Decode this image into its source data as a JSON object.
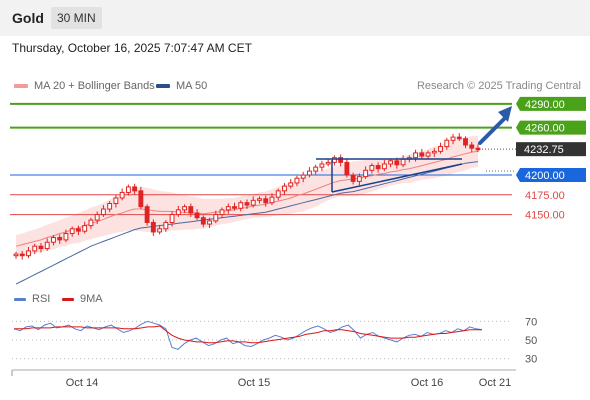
{
  "header": {
    "symbol": "Gold",
    "timeframe": "30 MIN",
    "datetime": "Thursday, October 16, 2025 7:07:47 AM CET"
  },
  "legend": {
    "ma20": "MA 20 + Bollinger Bands",
    "ma50": "MA 50",
    "credit": "Research © 2025 Trading Central",
    "rsi": "RSI",
    "ma9": "9MA"
  },
  "colors": {
    "candle": "#e02424",
    "resistance": "#4aa11a",
    "support_main": "#1a66dd",
    "support": "#e04848",
    "ma20": "#f08080",
    "ma50": "#4a6aa0",
    "bollinger_fill": "#fde2e2",
    "rsi": "#5a7fd0",
    "ma9": "#d81818",
    "current_price": "#333333",
    "arrow": "#2a5aa8",
    "pattern": "#1c3f8a"
  },
  "chart_data": [
    {
      "type": "candlestick",
      "x_axis_labels": [
        "Oct 14",
        "Oct 15",
        "Oct 16",
        "Oct 21"
      ],
      "ylim": [
        4090,
        4300
      ],
      "current_price": 4232.75,
      "current_price_label": "4232.75",
      "levels": [
        {
          "value": 4290.0,
          "label": "4290.00",
          "kind": "resistance",
          "style": "box"
        },
        {
          "value": 4260.0,
          "label": "4260.00",
          "kind": "resistance",
          "style": "box"
        },
        {
          "value": 4200.0,
          "label": "4200.00",
          "kind": "pivot",
          "style": "box"
        },
        {
          "value": 4175.0,
          "label": "4175.00",
          "kind": "support",
          "style": "text"
        },
        {
          "value": 4150.0,
          "label": "4150.00",
          "kind": "support",
          "style": "text"
        }
      ],
      "price_path": [
        4100,
        4098,
        4104,
        4110,
        4107,
        4115,
        4121,
        4118,
        4126,
        4132,
        4129,
        4136,
        4143,
        4150,
        4157,
        4164,
        4171,
        4178,
        4185,
        4180,
        4160,
        4140,
        4128,
        4132,
        4140,
        4150,
        4156,
        4160,
        4152,
        4146,
        4138,
        4142,
        4150,
        4156,
        4160,
        4158,
        4165,
        4162,
        4168,
        4170,
        4165,
        4172,
        4180,
        4186,
        4190,
        4196,
        4200,
        4205,
        4210,
        4214,
        4216,
        4222,
        4216,
        4200,
        4192,
        4198,
        4206,
        4212,
        4208,
        4214,
        4218,
        4213,
        4220,
        4222,
        4228,
        4224,
        4228,
        4230,
        4236,
        4244,
        4248,
        4246,
        4238,
        4234,
        4232
      ],
      "ma20": [
        4110,
        4112,
        4114,
        4116,
        4118,
        4121,
        4123,
        4126,
        4128,
        4131,
        4133,
        4136,
        4139,
        4141,
        4144,
        4147,
        4150,
        4152,
        4155,
        4157,
        4157,
        4156,
        4155,
        4154,
        4154,
        4154,
        4153,
        4153,
        4152,
        4152,
        4151,
        4152,
        4153,
        4154,
        4155,
        4156,
        4158,
        4159,
        4161,
        4162,
        4163,
        4165,
        4167,
        4169,
        4171,
        4174,
        4176,
        4179,
        4182,
        4185,
        4188,
        4191,
        4193,
        4194,
        4195,
        4196,
        4198,
        4199,
        4201,
        4202,
        4204,
        4205,
        4207,
        4208,
        4210,
        4212,
        4214,
        4216,
        4218,
        4220,
        4223,
        4225,
        4227,
        4229,
        4230
      ],
      "bb_width": [
        14,
        14,
        15,
        15,
        16,
        16,
        17,
        17,
        18,
        18,
        19,
        19,
        20,
        20,
        21,
        22,
        23,
        24,
        25,
        27,
        28,
        28,
        27,
        26,
        25,
        24,
        23,
        22,
        21,
        20,
        19,
        18,
        17,
        16,
        16,
        15,
        15,
        15,
        15,
        16,
        16,
        17,
        18,
        19,
        20,
        21,
        22,
        22,
        22,
        21,
        20,
        20,
        20,
        21,
        22,
        22,
        21,
        20,
        19,
        18,
        17,
        17,
        17,
        18,
        18,
        18,
        19,
        20,
        20,
        21,
        21,
        21,
        21,
        20,
        20
      ],
      "ma50": [
        4062,
        4066,
        4070,
        4074,
        4078,
        4082,
        4086,
        4090,
        4094,
        4098,
        4102,
        4106,
        4110,
        4113,
        4116,
        4119,
        4122,
        4125,
        4128,
        4131,
        4133,
        4134,
        4135,
        4136,
        4137,
        4138,
        4139,
        4140,
        4141,
        4142,
        4143,
        4144,
        4145,
        4146,
        4147,
        4148,
        4149,
        4150,
        4151,
        4152,
        4153,
        4155,
        4157,
        4159,
        4161,
        4163,
        4165,
        4167,
        4169,
        4171,
        4173,
        4175,
        4177,
        4178,
        4179,
        4181,
        4183,
        4185,
        4187,
        4189,
        4191,
        4193,
        4195,
        4197,
        4199,
        4201,
        4203,
        4205,
        4207,
        4209,
        4211,
        4213,
        4215,
        4216,
        4217
      ]
    },
    {
      "type": "line",
      "series_names": [
        "RSI",
        "9MA"
      ],
      "ylim": [
        20,
        80
      ],
      "y_ticks": [
        30,
        50,
        70
      ],
      "rsi": [
        62,
        60,
        64,
        65,
        61,
        66,
        68,
        63,
        64,
        66,
        62,
        60,
        65,
        63,
        61,
        64,
        66,
        62,
        58,
        60,
        63,
        67,
        70,
        68,
        66,
        62,
        42,
        40,
        46,
        50,
        52,
        48,
        44,
        46,
        50,
        52,
        46,
        48,
        44,
        43,
        46,
        50,
        52,
        55,
        53,
        50,
        52,
        56,
        60,
        63,
        65,
        62,
        58,
        60,
        64,
        66,
        60,
        52,
        56,
        58,
        54,
        52,
        50,
        48,
        52,
        55,
        56,
        54,
        58,
        56,
        57,
        60,
        58,
        62,
        60,
        64,
        62,
        61
      ],
      "ma9": [
        62,
        62,
        62,
        63,
        63,
        63,
        63,
        64,
        64,
        64,
        64,
        64,
        63,
        63,
        63,
        63,
        63,
        63,
        62,
        62,
        62,
        63,
        64,
        64,
        65,
        60,
        55,
        52,
        50,
        49,
        48,
        48,
        47,
        47,
        48,
        49,
        49,
        48,
        48,
        47,
        47,
        48,
        49,
        50,
        51,
        52,
        53,
        54,
        56,
        57,
        58,
        60,
        60,
        61,
        61,
        60,
        59,
        57,
        56,
        55,
        54,
        53,
        52,
        52,
        52,
        53,
        53,
        54,
        55,
        56,
        57,
        57,
        58,
        59,
        60,
        61,
        61,
        61
      ]
    }
  ]
}
